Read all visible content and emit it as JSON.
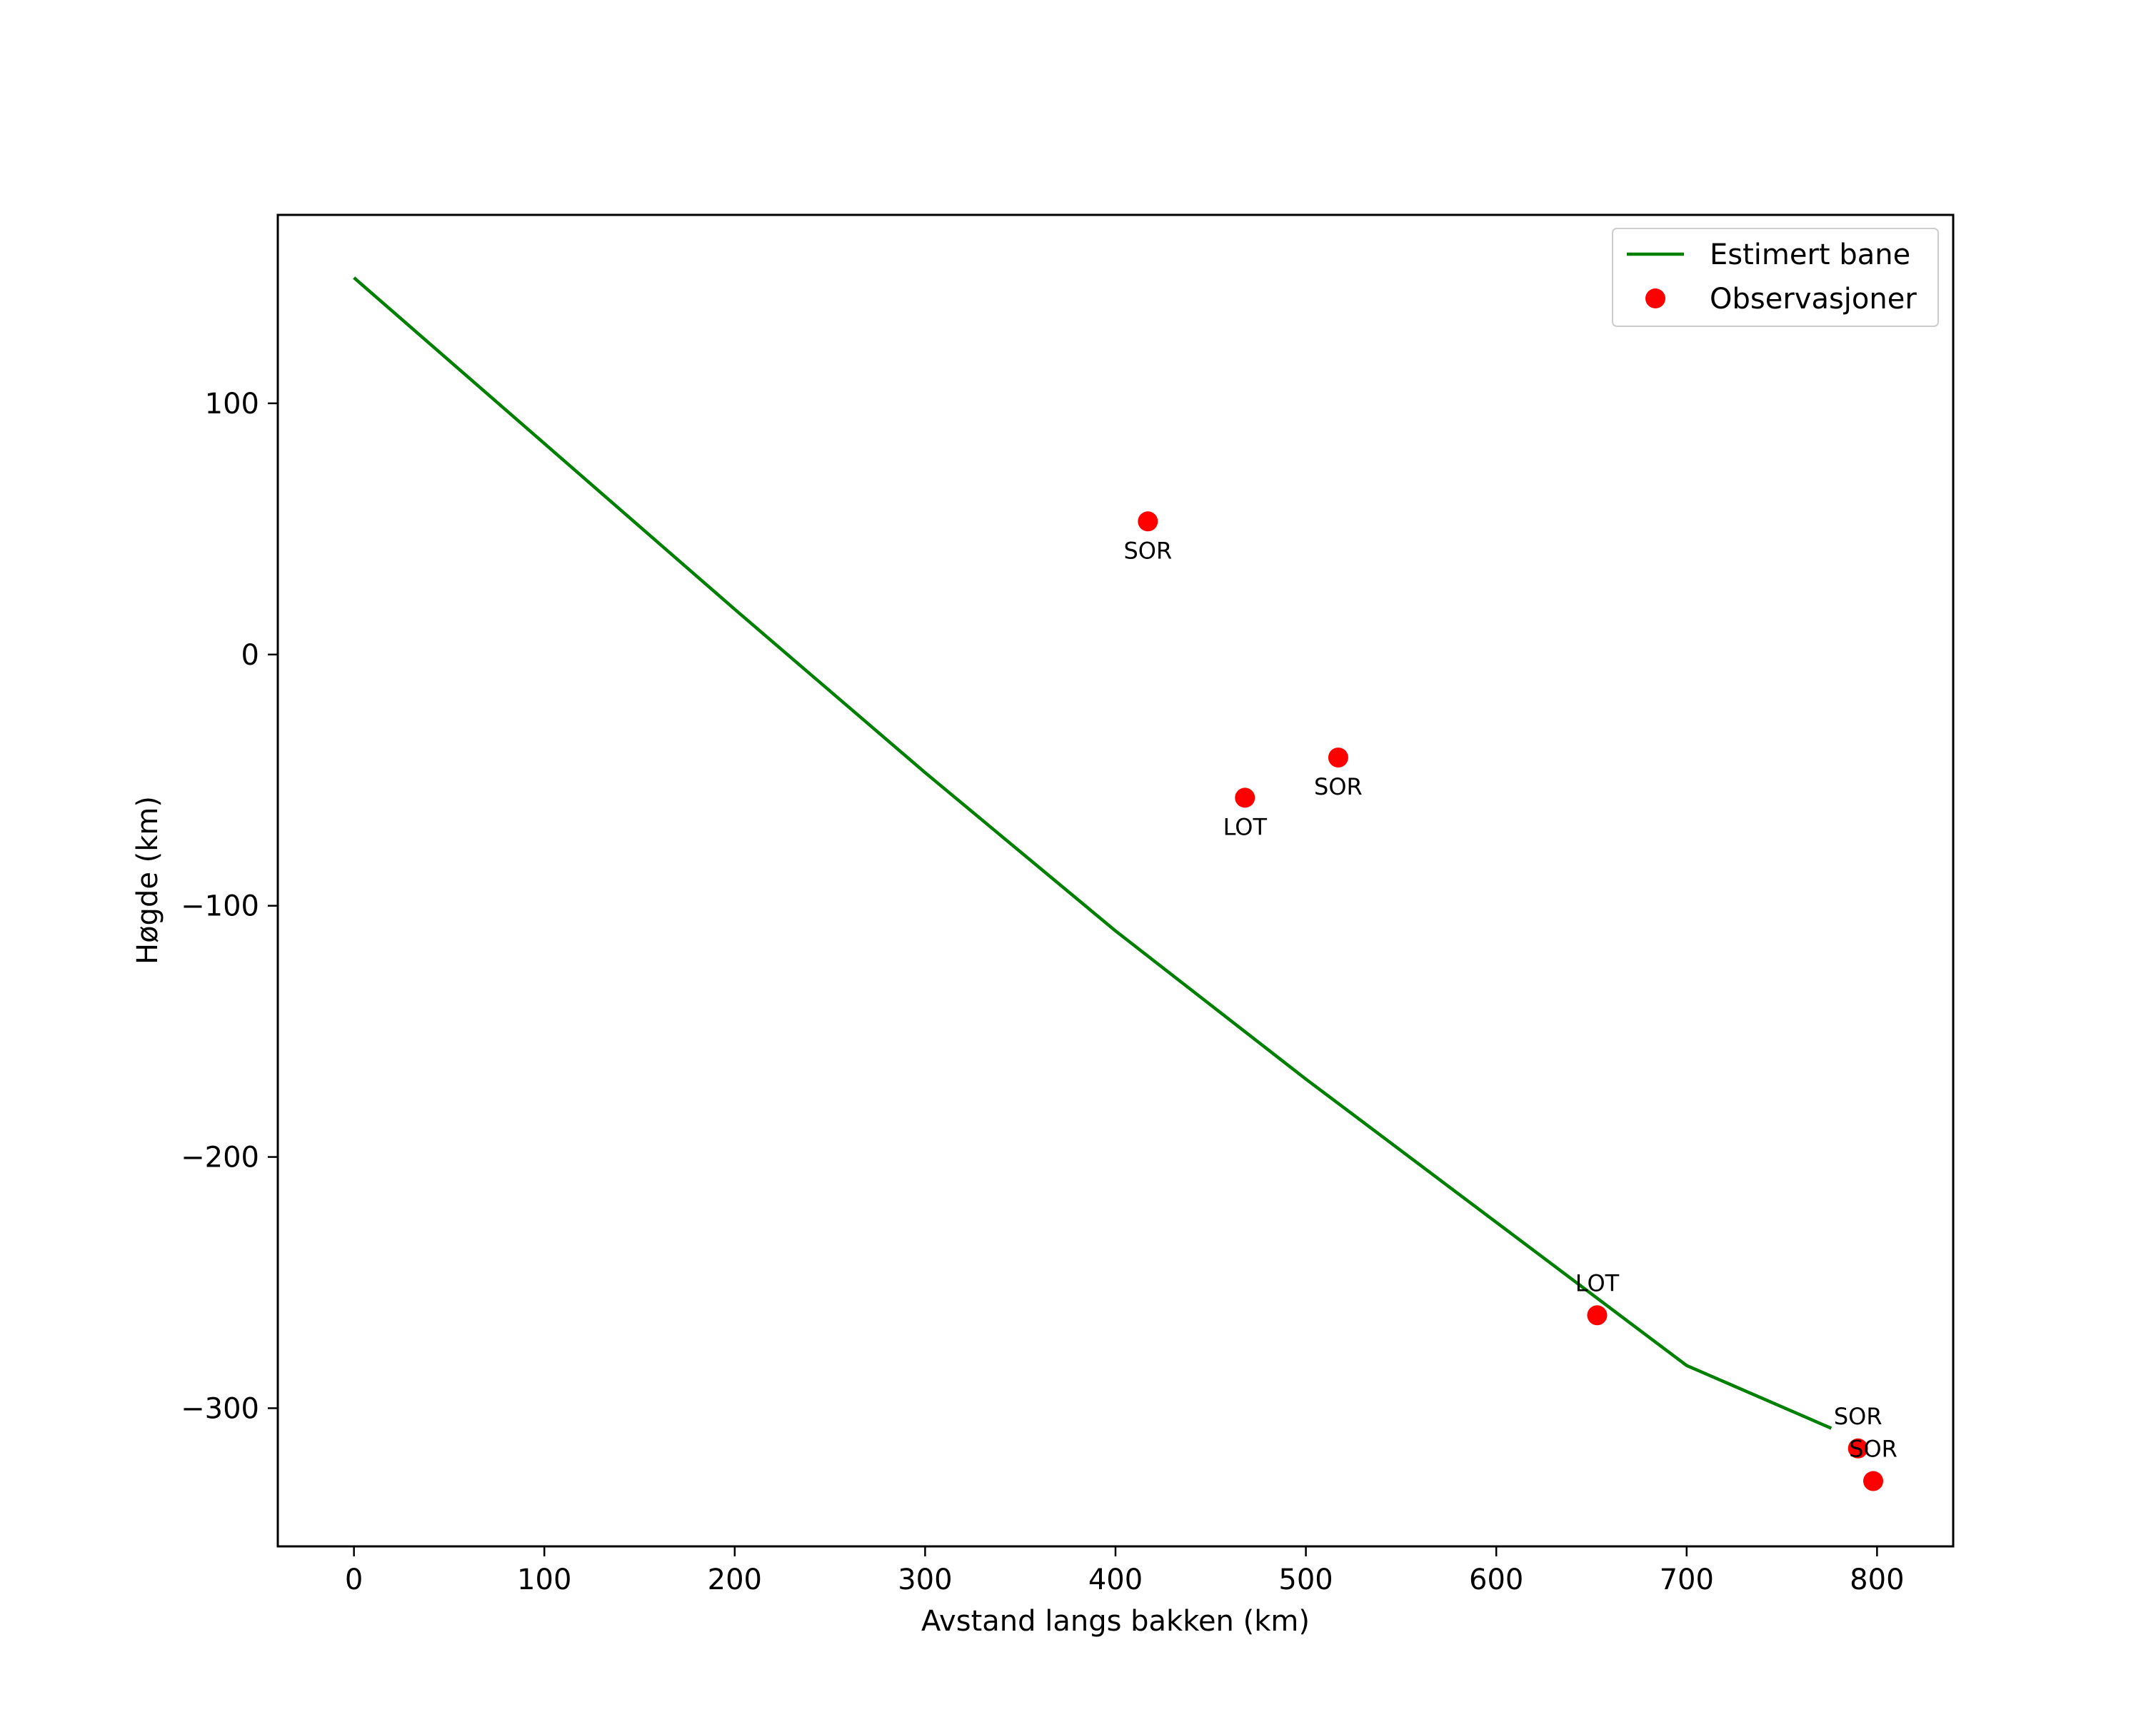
{
  "chart_data": {
    "type": "line+scatter",
    "title": "",
    "xlabel": "Avstand langs bakken (km)",
    "ylabel": "Høgde (km)",
    "xlim": [
      -40,
      840
    ],
    "ylim": [
      -355,
      175
    ],
    "xticks": [
      0,
      100,
      200,
      300,
      400,
      500,
      600,
      700,
      800
    ],
    "xtick_labels": [
      "0",
      "100",
      "200",
      "300",
      "400",
      "500",
      "600",
      "700",
      "800"
    ],
    "yticks": [
      100,
      0,
      -100,
      -200,
      -300
    ],
    "ytick_labels": [
      "100",
      "0",
      "−100",
      "−200",
      "−300"
    ],
    "grid": false,
    "legend_position": "top-right",
    "series": [
      {
        "name": "Estimert bane",
        "kind": "line",
        "color": "#008000",
        "x": [
          0,
          100,
          200,
          300,
          400,
          500,
          600,
          700,
          776
        ],
        "y": [
          150,
          84,
          18,
          -47,
          -110,
          -169,
          -226,
          -283,
          -308
        ]
      },
      {
        "name": "Observasjoner",
        "kind": "scatter",
        "color": "#ff0000",
        "x": [
          417,
          468,
          517,
          653,
          790,
          798
        ],
        "y": [
          53,
          -57,
          -41,
          -263,
          -316,
          -329
        ],
        "labels": [
          "SOR",
          "LOT",
          "SOR",
          "LOT",
          "SOR",
          "SOR"
        ],
        "label_placement": [
          "below",
          "below",
          "below",
          "above",
          "above",
          "above"
        ]
      }
    ]
  }
}
